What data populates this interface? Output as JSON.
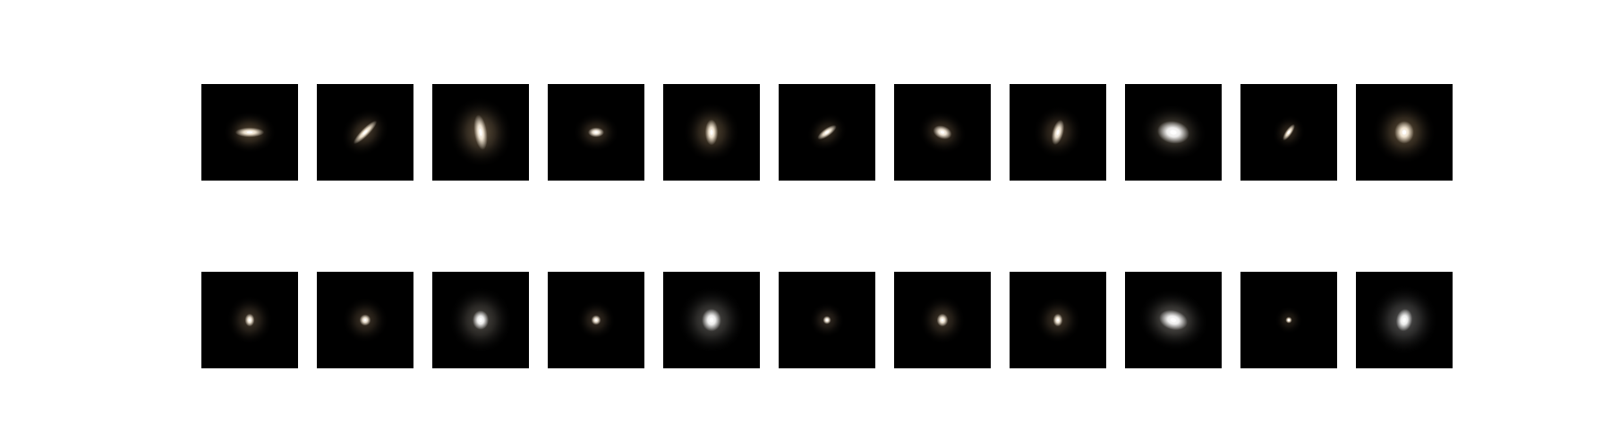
{
  "image_grid": {
    "rows": [
      {
        "id": "top",
        "tiles": [
          {
            "glow": "#fff3df",
            "halo": "#5a4a36",
            "core_rx": 9,
            "core_ry": 3,
            "halo_rx": 30,
            "halo_ry": 24,
            "angle": 0
          },
          {
            "glow": "#fff2dc",
            "halo": "#4f4130",
            "core_rx": 10,
            "core_ry": 2.5,
            "halo_rx": 30,
            "halo_ry": 24,
            "angle": -45
          },
          {
            "glow": "#fff4e2",
            "halo": "#6b5a44",
            "core_rx": 4,
            "core_ry": 11,
            "halo_rx": 36,
            "halo_ry": 40,
            "angle": -8
          },
          {
            "glow": "#fff5e6",
            "halo": "#473a2b",
            "core_rx": 5,
            "core_ry": 3,
            "halo_rx": 26,
            "halo_ry": 22,
            "angle": 0
          },
          {
            "glow": "#fff3df",
            "halo": "#5e4e39",
            "core_rx": 4,
            "core_ry": 8,
            "halo_rx": 32,
            "halo_ry": 34,
            "angle": 0
          },
          {
            "glow": "#fff3df",
            "halo": "#3e3325",
            "core_rx": 7,
            "core_ry": 2.5,
            "halo_rx": 24,
            "halo_ry": 20,
            "angle": -35
          },
          {
            "glow": "#fff4e4",
            "halo": "#4d3f2f",
            "core_rx": 6,
            "core_ry": 4,
            "halo_rx": 28,
            "halo_ry": 24,
            "angle": 20
          },
          {
            "glow": "#fff3df",
            "halo": "#4b3d2d",
            "core_rx": 3.5,
            "core_ry": 8,
            "halo_rx": 28,
            "halo_ry": 30,
            "angle": 15
          },
          {
            "glow": "#ffffff",
            "halo": "#5d5548",
            "core_rx": 10,
            "core_ry": 7,
            "halo_rx": 38,
            "halo_ry": 32,
            "angle": 10
          },
          {
            "glow": "#fff1da",
            "halo": "#3a2f22",
            "core_rx": 6,
            "core_ry": 2,
            "halo_rx": 20,
            "halo_ry": 18,
            "angle": -55
          },
          {
            "glow": "#fff3df",
            "halo": "#6a5840",
            "core_rx": 6,
            "core_ry": 7,
            "halo_rx": 36,
            "halo_ry": 36,
            "angle": 0
          }
        ]
      },
      {
        "id": "bottom",
        "tiles": [
          {
            "glow": "#fff4e2",
            "halo": "#4a3e30",
            "core_rx": 3,
            "core_ry": 4,
            "halo_rx": 26,
            "halo_ry": 28,
            "angle": 0
          },
          {
            "glow": "#fff4e2",
            "halo": "#463a2c",
            "core_rx": 3.5,
            "core_ry": 3.5,
            "halo_rx": 26,
            "halo_ry": 26,
            "angle": 0
          },
          {
            "glow": "#ffffff",
            "halo": "#57534d",
            "core_rx": 5,
            "core_ry": 6,
            "halo_rx": 36,
            "halo_ry": 38,
            "angle": 0
          },
          {
            "glow": "#fff4e2",
            "halo": "#3f3428",
            "core_rx": 3,
            "core_ry": 3,
            "halo_rx": 22,
            "halo_ry": 22,
            "angle": 0
          },
          {
            "glow": "#ffffff",
            "halo": "#5c5a56",
            "core_rx": 6,
            "core_ry": 7,
            "halo_rx": 38,
            "halo_ry": 38,
            "angle": 0
          },
          {
            "glow": "#fff4e2",
            "halo": "#3a3026",
            "core_rx": 2.5,
            "core_ry": 2.5,
            "halo_rx": 20,
            "halo_ry": 20,
            "angle": 0
          },
          {
            "glow": "#fff4e2",
            "halo": "#483c2e",
            "core_rx": 3.5,
            "core_ry": 4,
            "halo_rx": 26,
            "halo_ry": 28,
            "angle": 0
          },
          {
            "glow": "#fff4e2",
            "halo": "#463a2c",
            "core_rx": 3,
            "core_ry": 4,
            "halo_rx": 26,
            "halo_ry": 26,
            "angle": 0
          },
          {
            "glow": "#ffffff",
            "halo": "#6a6762",
            "core_rx": 9,
            "core_ry": 6,
            "halo_rx": 40,
            "halo_ry": 34,
            "angle": 15
          },
          {
            "glow": "#fff0d8",
            "halo": "#2e261c",
            "core_rx": 2,
            "core_ry": 2,
            "halo_rx": 16,
            "halo_ry": 16,
            "angle": 0
          },
          {
            "glow": "#ffffff",
            "halo": "#5e5d5c",
            "core_rx": 5,
            "core_ry": 7,
            "halo_rx": 38,
            "halo_ry": 40,
            "angle": 10
          }
        ]
      }
    ]
  }
}
